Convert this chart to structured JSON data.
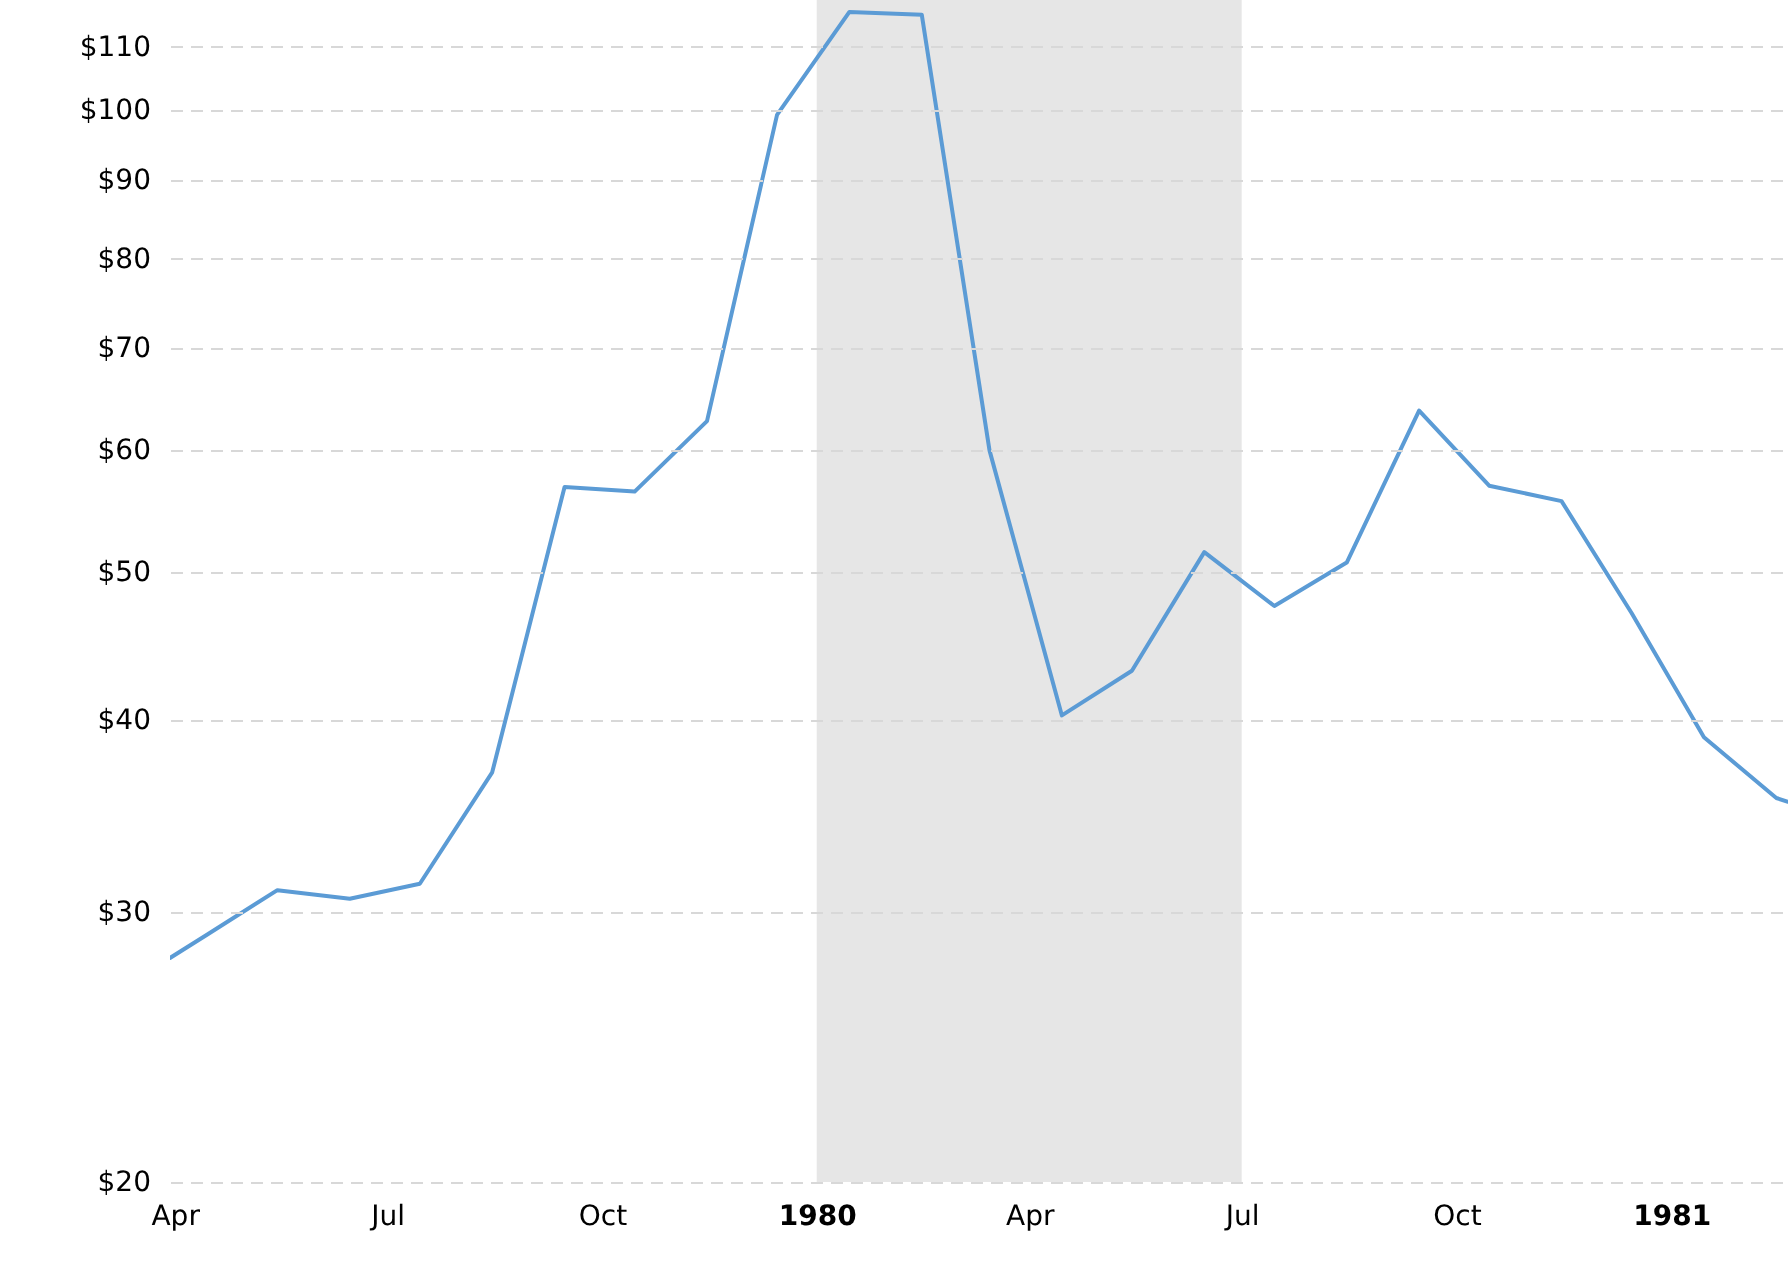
{
  "chart_data": {
    "type": "line",
    "x": [
      "1979-03-30",
      "1979-04-15",
      "1979-05-15",
      "1979-06-15",
      "1979-07-15",
      "1979-08-15",
      "1979-09-15",
      "1979-10-15",
      "1979-11-15",
      "1979-12-15",
      "1980-01-15",
      "1980-02-15",
      "1980-03-15",
      "1980-04-15",
      "1980-05-15",
      "1980-06-15",
      "1980-07-15",
      "1980-08-15",
      "1980-09-15",
      "1980-10-15",
      "1980-11-15",
      "1980-12-15",
      "1981-01-15",
      "1981-02-15",
      "1981-02-20"
    ],
    "series": [
      {
        "color": "#5b9bd5",
        "values": [
          28.0,
          29.0,
          31.0,
          30.6,
          31.3,
          37.0,
          56.8,
          56.4,
          62.7,
          99.3,
          115.9,
          115.4,
          60.0,
          40.3,
          43.1,
          51.5,
          47.5,
          50.7,
          63.7,
          56.9,
          55.6,
          47.0,
          39.0,
          35.6,
          35.4
        ]
      }
    ],
    "xlim": [
      "1979-03-30",
      "1981-02-20"
    ],
    "xticks": [
      {
        "value": "1979-04-01",
        "label": "Apr"
      },
      {
        "value": "1979-07-01",
        "label": "Jul"
      },
      {
        "value": "1979-10-01",
        "label": "Oct"
      },
      {
        "value": "1980-01-01",
        "label": "1980"
      },
      {
        "value": "1980-04-01",
        "label": "Apr"
      },
      {
        "value": "1980-07-01",
        "label": "Jul"
      },
      {
        "value": "1980-10-01",
        "label": "Oct"
      },
      {
        "value": "1981-01-01",
        "label": "1981"
      }
    ],
    "ylim": [
      20,
      118
    ],
    "yticks": [
      {
        "value": 20,
        "label": "$20"
      },
      {
        "value": 30,
        "label": "$30"
      },
      {
        "value": 40,
        "label": "$40"
      },
      {
        "value": 50,
        "label": "$50"
      },
      {
        "value": 60,
        "label": "$60"
      },
      {
        "value": 70,
        "label": "$70"
      },
      {
        "value": 80,
        "label": "$80"
      },
      {
        "value": 90,
        "label": "$90"
      },
      {
        "value": 100,
        "label": "$100"
      },
      {
        "value": 110,
        "label": "$110"
      }
    ],
    "log": true,
    "grid": "y",
    "bands": [
      {
        "axis": "x",
        "from": "1980-01-01",
        "to": "1980-07-01",
        "color": "#e6e6e6"
      }
    ]
  }
}
